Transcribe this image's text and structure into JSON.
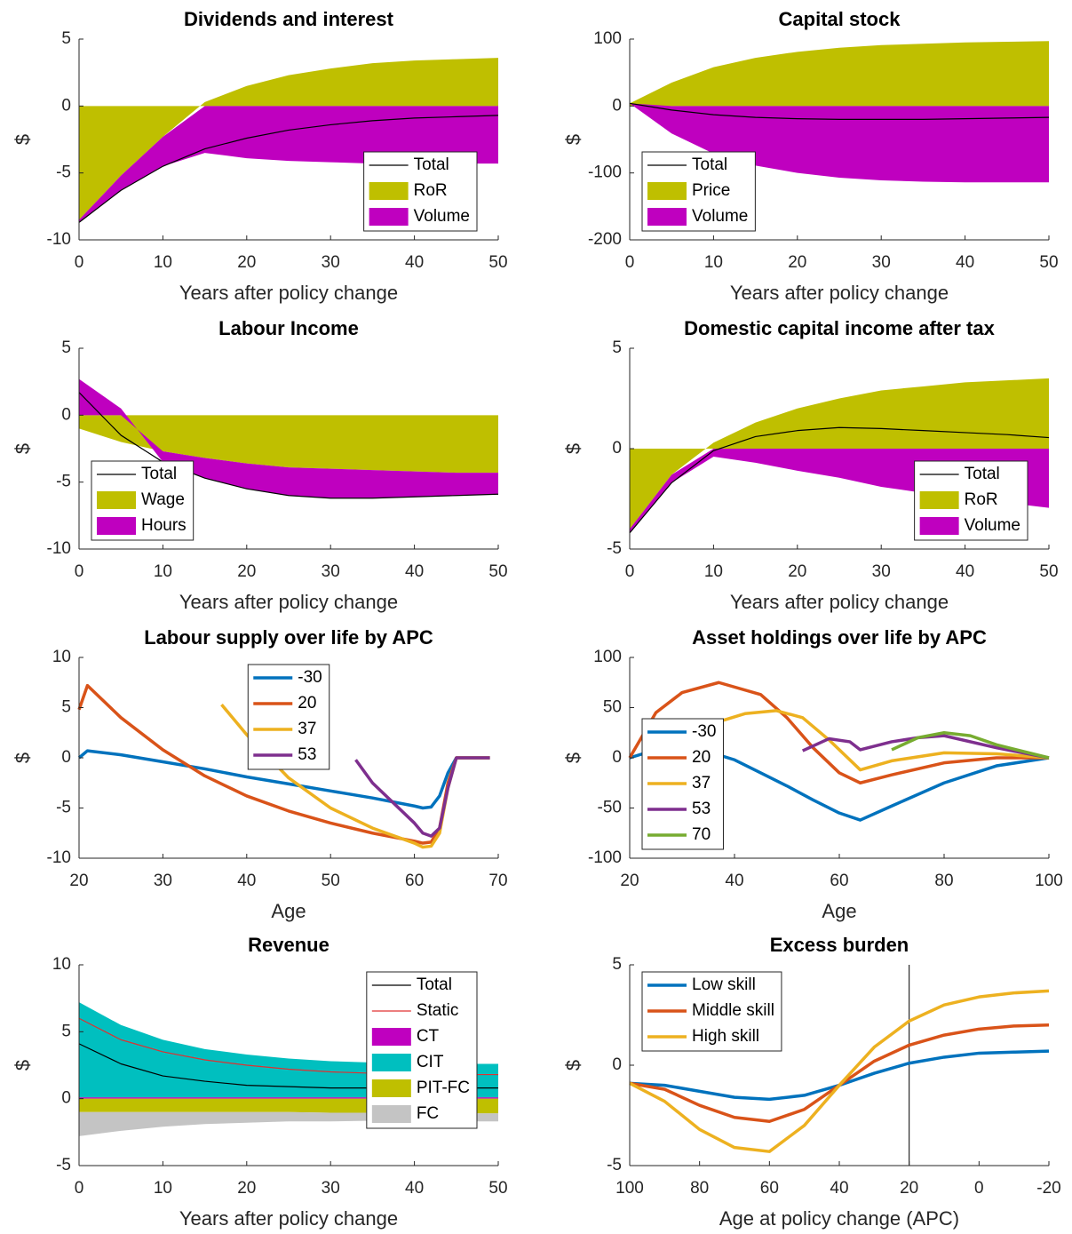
{
  "chart_data": [
    {
      "type": "area",
      "title": "Dividends and interest",
      "xlabel": "Years after policy change",
      "ylabel": "$",
      "x": [
        0,
        5,
        10,
        15,
        20,
        25,
        30,
        35,
        40,
        45,
        50
      ],
      "xlim": [
        0,
        50
      ],
      "xticks": [
        0,
        10,
        20,
        30,
        40,
        50
      ],
      "ylim": [
        -10,
        5
      ],
      "yticks": [
        -10,
        -5,
        0,
        5
      ],
      "legend": "southeast",
      "series": [
        {
          "name": "Total",
          "kind": "line",
          "color": "#000000",
          "values": [
            -8.7,
            -6.3,
            -4.5,
            -3.2,
            -2.4,
            -1.8,
            -1.4,
            -1.1,
            -0.9,
            -0.8,
            -0.7
          ]
        },
        {
          "name": "RoR",
          "kind": "area",
          "color": "#bfbf00",
          "values": [
            -8.5,
            -5.2,
            -2.3,
            0.3,
            1.5,
            2.3,
            2.8,
            3.2,
            3.4,
            3.5,
            3.6
          ]
        },
        {
          "name": "Volume",
          "kind": "area",
          "color": "#bf00bf",
          "values": [
            -0.2,
            -1.1,
            -2.2,
            -3.5,
            -3.9,
            -4.1,
            -4.2,
            -4.3,
            -4.3,
            -4.3,
            -4.3
          ]
        }
      ]
    },
    {
      "type": "area",
      "title": "Capital stock",
      "xlabel": "Years after policy change",
      "ylabel": "$",
      "x": [
        0,
        5,
        10,
        15,
        20,
        25,
        30,
        35,
        40,
        45,
        50
      ],
      "xlim": [
        0,
        50
      ],
      "xticks": [
        0,
        10,
        20,
        30,
        40,
        50
      ],
      "ylim": [
        -200,
        100
      ],
      "yticks": [
        -200,
        -100,
        0,
        100
      ],
      "legend": "southwest",
      "series": [
        {
          "name": "Total",
          "kind": "line",
          "color": "#000000",
          "values": [
            4,
            -6,
            -13,
            -17,
            -19,
            -20,
            -20,
            -20,
            -19,
            -18,
            -17
          ]
        },
        {
          "name": "Price",
          "kind": "area",
          "color": "#bfbf00",
          "values": [
            4,
            35,
            58,
            72,
            81,
            87,
            91,
            93,
            95,
            96,
            97
          ]
        },
        {
          "name": "Volume",
          "kind": "area",
          "color": "#bf00bf",
          "values": [
            0,
            -41,
            -71,
            -89,
            -100,
            -107,
            -111,
            -113,
            -114,
            -114,
            -114
          ]
        }
      ]
    },
    {
      "type": "area",
      "title": "Labour Income",
      "xlabel": "Years after policy change",
      "ylabel": "$",
      "x": [
        0,
        5,
        10,
        15,
        20,
        25,
        30,
        35,
        40,
        45,
        50
      ],
      "xlim": [
        0,
        50
      ],
      "xticks": [
        0,
        10,
        20,
        30,
        40,
        50
      ],
      "ylim": [
        -10,
        5
      ],
      "yticks": [
        -10,
        -5,
        0,
        5
      ],
      "legend": "southwest",
      "series": [
        {
          "name": "Total",
          "kind": "line",
          "color": "#000000",
          "values": [
            1.7,
            -1.5,
            -3.5,
            -4.7,
            -5.5,
            -6.0,
            -6.2,
            -6.2,
            -6.1,
            -6.0,
            -5.9
          ]
        },
        {
          "name": "Wage",
          "kind": "area",
          "color": "#bfbf00",
          "values": [
            -1.0,
            -2.0,
            -2.7,
            -3.2,
            -3.6,
            -3.9,
            -4.0,
            -4.1,
            -4.2,
            -4.3,
            -4.3
          ]
        },
        {
          "name": "Hours",
          "kind": "area",
          "color": "#bf00bf",
          "values": [
            2.7,
            0.5,
            -0.8,
            -1.5,
            -1.9,
            -2.1,
            -2.2,
            -2.1,
            -1.9,
            -1.7,
            -1.6
          ]
        }
      ]
    },
    {
      "type": "area",
      "title": "Domestic capital income after tax",
      "xlabel": "Years after policy change",
      "ylabel": "$",
      "x": [
        0,
        5,
        10,
        15,
        20,
        25,
        30,
        35,
        40,
        45,
        50
      ],
      "xlim": [
        0,
        50
      ],
      "xticks": [
        0,
        10,
        20,
        30,
        40,
        50
      ],
      "ylim": [
        -5,
        5
      ],
      "yticks": [
        -5,
        0,
        5
      ],
      "legend": "southeast",
      "series": [
        {
          "name": "Total",
          "kind": "line",
          "color": "#000000",
          "values": [
            -4.2,
            -1.7,
            -0.1,
            0.6,
            0.9,
            1.05,
            1.0,
            0.9,
            0.8,
            0.7,
            0.55
          ]
        },
        {
          "name": "RoR",
          "kind": "area",
          "color": "#bfbf00",
          "values": [
            -4.0,
            -1.3,
            0.3,
            1.3,
            2.0,
            2.5,
            2.9,
            3.1,
            3.3,
            3.4,
            3.5
          ]
        },
        {
          "name": "Volume",
          "kind": "area",
          "color": "#bf00bf",
          "values": [
            -0.2,
            -0.4,
            -0.4,
            -0.7,
            -1.1,
            -1.45,
            -1.9,
            -2.2,
            -2.5,
            -2.7,
            -2.95
          ]
        }
      ]
    },
    {
      "type": "line",
      "title": "Labour supply over life by APC",
      "xlabel": "Age",
      "ylabel": "$",
      "xlim": [
        20,
        70
      ],
      "xticks": [
        20,
        30,
        40,
        50,
        60,
        70
      ],
      "ylim": [
        -10,
        10
      ],
      "yticks": [
        -10,
        -5,
        0,
        5,
        10
      ],
      "legend": "north",
      "series": [
        {
          "name": "-30",
          "kind": "line",
          "color": "#0072bd",
          "x": [
            20,
            21,
            25,
            30,
            35,
            40,
            45,
            50,
            55,
            60,
            61,
            62,
            63,
            64,
            65,
            69
          ],
          "values": [
            0,
            0.7,
            0.3,
            -0.4,
            -1.1,
            -1.9,
            -2.6,
            -3.3,
            -4.0,
            -4.8,
            -5.0,
            -4.9,
            -3.8,
            -1.5,
            0,
            0
          ]
        },
        {
          "name": "20",
          "kind": "line",
          "color": "#d95319",
          "x": [
            20,
            21,
            25,
            30,
            35,
            40,
            45,
            50,
            55,
            60,
            61,
            62,
            63,
            64,
            65,
            69
          ],
          "values": [
            4.8,
            7.2,
            4.0,
            0.8,
            -1.8,
            -3.8,
            -5.3,
            -6.5,
            -7.5,
            -8.3,
            -8.5,
            -8.4,
            -7.0,
            -2.5,
            0,
            0
          ]
        },
        {
          "name": "37",
          "kind": "line",
          "color": "#edb120",
          "x": [
            37,
            40,
            45,
            50,
            55,
            60,
            61,
            62,
            63,
            64,
            65,
            69
          ],
          "values": [
            5.3,
            2.3,
            -2.0,
            -5.0,
            -7.0,
            -8.5,
            -8.9,
            -8.8,
            -7.5,
            -3,
            0,
            0
          ]
        },
        {
          "name": "53",
          "kind": "line",
          "color": "#7e2f8e",
          "x": [
            53,
            55,
            60,
            61,
            62,
            63,
            64,
            65,
            69
          ],
          "values": [
            -0.2,
            -2.5,
            -6.5,
            -7.5,
            -7.8,
            -7.0,
            -3,
            0,
            0
          ]
        }
      ]
    },
    {
      "type": "line",
      "title": "Asset holdings over life by APC",
      "xlabel": "Age",
      "ylabel": "$",
      "xlim": [
        20,
        100
      ],
      "xticks": [
        20,
        40,
        60,
        80,
        100
      ],
      "ylim": [
        -100,
        100
      ],
      "yticks": [
        -100,
        -50,
        0,
        50,
        100
      ],
      "legend": "southwest",
      "series": [
        {
          "name": "-30",
          "kind": "line",
          "color": "#0072bd",
          "x": [
            20,
            25,
            30,
            35,
            40,
            45,
            50,
            55,
            60,
            64,
            70,
            80,
            90,
            100
          ],
          "values": [
            0,
            8,
            10,
            6,
            -2,
            -15,
            -28,
            -42,
            -55,
            -62,
            -48,
            -25,
            -8,
            0
          ]
        },
        {
          "name": "20",
          "kind": "line",
          "color": "#d95319",
          "x": [
            20,
            25,
            30,
            37,
            45,
            50,
            55,
            60,
            64,
            70,
            80,
            90,
            100
          ],
          "values": [
            0,
            45,
            65,
            75,
            63,
            40,
            10,
            -15,
            -25,
            -17,
            -5,
            0,
            0
          ]
        },
        {
          "name": "37",
          "kind": "line",
          "color": "#edb120",
          "x": [
            37,
            42,
            48,
            53,
            58,
            64,
            70,
            80,
            90,
            100
          ],
          "values": [
            36,
            44,
            47,
            40,
            18,
            -12,
            -3,
            5,
            4,
            0
          ]
        },
        {
          "name": "53",
          "kind": "line",
          "color": "#7e2f8e",
          "x": [
            53,
            58,
            62,
            64,
            70,
            75,
            80,
            90,
            100
          ],
          "values": [
            7,
            19,
            16,
            8,
            16,
            20,
            22,
            10,
            0
          ]
        },
        {
          "name": "70",
          "kind": "line",
          "color": "#77ac30",
          "x": [
            70,
            75,
            80,
            85,
            90,
            100
          ],
          "values": [
            8,
            20,
            25,
            22,
            13,
            0
          ]
        }
      ]
    },
    {
      "type": "area",
      "title": "Revenue",
      "xlabel": "Years after policy change",
      "ylabel": "$",
      "x": [
        0,
        5,
        10,
        15,
        20,
        25,
        30,
        35,
        40,
        45,
        50
      ],
      "xlim": [
        0,
        50
      ],
      "xticks": [
        0,
        10,
        20,
        30,
        40,
        50
      ],
      "ylim": [
        -5,
        10
      ],
      "yticks": [
        -5,
        0,
        5,
        10
      ],
      "legend": "northeast",
      "series": [
        {
          "name": "Total",
          "kind": "line",
          "color": "#000000",
          "values": [
            4.1,
            2.6,
            1.7,
            1.3,
            1.0,
            0.9,
            0.8,
            0.8,
            0.8,
            0.8,
            0.8
          ]
        },
        {
          "name": "Static",
          "kind": "line",
          "color": "#e03030",
          "values": [
            6.0,
            4.4,
            3.5,
            2.9,
            2.5,
            2.2,
            2.0,
            1.9,
            1.8,
            1.8,
            1.8
          ]
        },
        {
          "name": "CT",
          "kind": "area",
          "color": "#bf00bf",
          "values": [
            0.1,
            0.1,
            0.1,
            0.1,
            0.1,
            0.1,
            0.1,
            0.1,
            0.1,
            0.1,
            0.1
          ]
        },
        {
          "name": "CIT",
          "kind": "area",
          "color": "#00bfbf",
          "values": [
            7.1,
            5.4,
            4.3,
            3.6,
            3.2,
            2.9,
            2.7,
            2.6,
            2.5,
            2.5,
            2.5
          ]
        },
        {
          "name": "PIT-FC",
          "kind": "area",
          "color": "#bfbf00",
          "values": [
            -1.0,
            -1.0,
            -1.0,
            -1.0,
            -1.0,
            -1.0,
            -1.05,
            -1.05,
            -1.1,
            -1.1,
            -1.1
          ]
        },
        {
          "name": "FC",
          "kind": "area",
          "color": "#c4c4c4",
          "values": [
            -1.8,
            -1.4,
            -1.1,
            -0.9,
            -0.8,
            -0.7,
            -0.65,
            -0.6,
            -0.6,
            -0.6,
            -0.6
          ]
        }
      ]
    },
    {
      "type": "line",
      "title": "Excess burden",
      "xlabel": "Age at policy change (APC)",
      "ylabel": "$",
      "x": [
        100,
        90,
        80,
        70,
        60,
        50,
        40,
        30,
        20,
        10,
        0,
        -10,
        -20
      ],
      "xlim": [
        100,
        -20
      ],
      "xticks": [
        100,
        80,
        60,
        40,
        20,
        0,
        -20
      ],
      "ylim": [
        -5,
        5
      ],
      "yticks": [
        -5,
        0,
        5
      ],
      "legend": "northwest",
      "reference_x": 20,
      "series": [
        {
          "name": "Low skill",
          "kind": "line",
          "color": "#0072bd",
          "values": [
            -0.9,
            -1.0,
            -1.3,
            -1.6,
            -1.7,
            -1.5,
            -1.0,
            -0.4,
            0.1,
            0.4,
            0.6,
            0.65,
            0.7
          ]
        },
        {
          "name": "Middle skill",
          "kind": "line",
          "color": "#d95319",
          "values": [
            -0.9,
            -1.2,
            -2.0,
            -2.6,
            -2.8,
            -2.2,
            -1.0,
            0.2,
            1.0,
            1.5,
            1.8,
            1.95,
            2.0
          ]
        },
        {
          "name": "High skill",
          "kind": "line",
          "color": "#edb120",
          "values": [
            -0.9,
            -1.8,
            -3.2,
            -4.1,
            -4.3,
            -3.0,
            -1.0,
            0.9,
            2.2,
            3.0,
            3.4,
            3.6,
            3.7
          ]
        }
      ]
    }
  ]
}
